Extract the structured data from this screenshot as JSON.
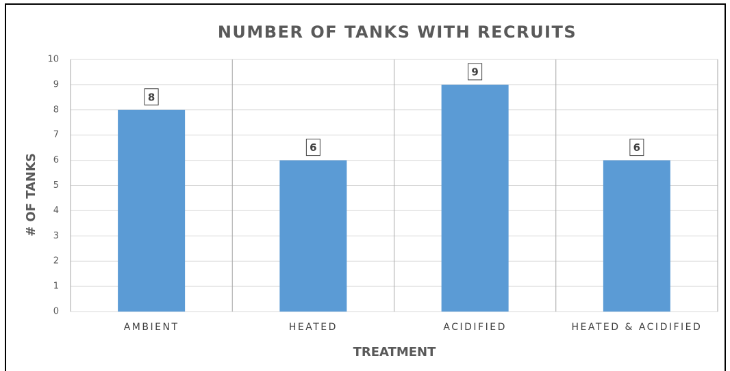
{
  "chart_data": {
    "type": "bar",
    "title": "NUMBER OF TANKS WITH RECRUITS",
    "x_label": "TREATMENT",
    "y_label": "# OF TANKS",
    "categories": [
      "AMBIENT",
      "HEATED",
      "ACIDIFIED",
      "HEATED & ACIDIFIED"
    ],
    "values": [
      8,
      6,
      9,
      6
    ],
    "color": "#5b9bd5",
    "ylim": [
      0,
      10
    ],
    "yticks": [
      0,
      1,
      2,
      3,
      4,
      5,
      6,
      7,
      8,
      9,
      10
    ],
    "grid": true
  }
}
